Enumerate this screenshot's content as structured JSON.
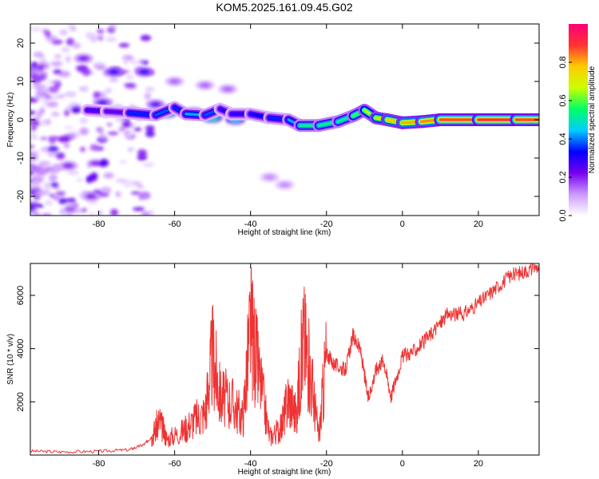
{
  "chart_data": [
    {
      "type": "heatmap",
      "title": "KOM5.2025.161.09.45.G02",
      "xlabel": "Height of straight line (km)",
      "ylabel": "Frequency (Hz)",
      "xlim": [
        -98,
        36
      ],
      "ylim": [
        -25,
        25
      ],
      "x_ticks": [
        -80,
        -60,
        -40,
        -20,
        0,
        20
      ],
      "y_ticks": [
        -20,
        -10,
        0,
        10,
        20
      ],
      "colorbar": {
        "label": "Normalized spectral amplitude",
        "range": [
          0,
          1
        ],
        "ticks": [
          0.0,
          0.2,
          0.4,
          0.6,
          0.8
        ],
        "colors": [
          "#ffffff",
          "#cc99ff",
          "#7700ee",
          "#0000ff",
          "#00ccff",
          "#00ff66",
          "#ccff00",
          "#ffcc00",
          "#ff3333",
          "#ff0077"
        ]
      },
      "ridge": [
        {
          "x": -83,
          "y": 2.5,
          "amp": 0.3
        },
        {
          "x": -78,
          "y": 2.2,
          "amp": 0.25
        },
        {
          "x": -72,
          "y": 1.8,
          "amp": 0.25
        },
        {
          "x": -65,
          "y": 1.2,
          "amp": 0.45
        },
        {
          "x": -60,
          "y": 3.2,
          "amp": 0.3
        },
        {
          "x": -57,
          "y": 1.5,
          "amp": 0.4
        },
        {
          "x": -52,
          "y": 1.2,
          "amp": 0.45
        },
        {
          "x": -48,
          "y": 2.8,
          "amp": 0.3
        },
        {
          "x": -45,
          "y": 1.5,
          "amp": 0.3
        },
        {
          "x": -40,
          "y": 1.5,
          "amp": 0.3
        },
        {
          "x": -35,
          "y": 0.5,
          "amp": 0.35
        },
        {
          "x": -30,
          "y": 0.0,
          "amp": 0.35
        },
        {
          "x": -27,
          "y": -1.5,
          "amp": 0.5
        },
        {
          "x": -22,
          "y": -1.5,
          "amp": 0.55
        },
        {
          "x": -17,
          "y": -0.5,
          "amp": 0.5
        },
        {
          "x": -13,
          "y": 1.0,
          "amp": 0.55
        },
        {
          "x": -10,
          "y": 2.5,
          "amp": 0.6
        },
        {
          "x": -7,
          "y": 0.5,
          "amp": 0.7
        },
        {
          "x": -4,
          "y": 0.0,
          "amp": 0.75
        },
        {
          "x": 0,
          "y": -0.8,
          "amp": 0.8
        },
        {
          "x": 5,
          "y": -0.5,
          "amp": 0.8
        },
        {
          "x": 10,
          "y": 0.0,
          "amp": 0.85
        },
        {
          "x": 20,
          "y": 0.0,
          "amp": 0.9
        },
        {
          "x": 30,
          "y": 0.0,
          "amp": 0.9
        },
        {
          "x": 36,
          "y": 0.0,
          "amp": 0.85
        }
      ],
      "blobs": [
        {
          "x": -76,
          "y": 12.5,
          "amp": 0.3
        },
        {
          "x": -68,
          "y": 12.5,
          "amp": 0.3
        },
        {
          "x": -79,
          "y": 4.5,
          "amp": 0.25
        },
        {
          "x": -65,
          "y": 4.0,
          "amp": 0.25
        },
        {
          "x": -62,
          "y": 1.8,
          "amp": 0.55
        },
        {
          "x": -55,
          "y": 1.8,
          "amp": 0.5
        },
        {
          "x": -50,
          "y": 0.5,
          "amp": 0.5
        },
        {
          "x": -44,
          "y": 0.0,
          "amp": 0.45
        },
        {
          "x": -60,
          "y": 10.0,
          "amp": 0.15
        },
        {
          "x": -52,
          "y": 9.0,
          "amp": 0.15
        },
        {
          "x": -46,
          "y": 8.0,
          "amp": 0.15
        },
        {
          "x": -35,
          "y": -15.0,
          "amp": 0.12
        },
        {
          "x": -31,
          "y": -17.0,
          "amp": 0.12
        },
        {
          "x": -84,
          "y": 16.0,
          "amp": 0.22
        },
        {
          "x": -88,
          "y": -12.0,
          "amp": 0.2
        },
        {
          "x": -82,
          "y": -20.0,
          "amp": 0.2
        }
      ]
    },
    {
      "type": "line",
      "xlabel": "Height of straight line (km)",
      "ylabel": "SNR (10 * v/v)",
      "xlim": [
        -98,
        36
      ],
      "ylim": [
        0,
        7200
      ],
      "x_ticks": [
        -80,
        -60,
        -40,
        -20,
        0,
        20
      ],
      "y_ticks": [
        2000,
        4000,
        6000
      ],
      "color": "#ee3333",
      "points": [
        {
          "x": -98,
          "y": 150
        },
        {
          "x": -90,
          "y": 120
        },
        {
          "x": -80,
          "y": 140
        },
        {
          "x": -72,
          "y": 200
        },
        {
          "x": -68,
          "y": 400
        },
        {
          "x": -66,
          "y": 700
        },
        {
          "x": -64,
          "y": 1300
        },
        {
          "x": -62,
          "y": 600
        },
        {
          "x": -58,
          "y": 900
        },
        {
          "x": -55,
          "y": 1300
        },
        {
          "x": -52,
          "y": 1600
        },
        {
          "x": -50,
          "y": 3800
        },
        {
          "x": -48,
          "y": 2200
        },
        {
          "x": -45,
          "y": 2000
        },
        {
          "x": -42,
          "y": 1400
        },
        {
          "x": -40,
          "y": 4900
        },
        {
          "x": -38,
          "y": 3200
        },
        {
          "x": -35,
          "y": 700
        },
        {
          "x": -32,
          "y": 1000
        },
        {
          "x": -30,
          "y": 2200
        },
        {
          "x": -28,
          "y": 1500
        },
        {
          "x": -26,
          "y": 4500
        },
        {
          "x": -24,
          "y": 2800
        },
        {
          "x": -22,
          "y": 700
        },
        {
          "x": -20,
          "y": 3800
        },
        {
          "x": -18,
          "y": 3400
        },
        {
          "x": -15,
          "y": 3200
        },
        {
          "x": -13,
          "y": 4500
        },
        {
          "x": -11,
          "y": 3900
        },
        {
          "x": -9,
          "y": 2100
        },
        {
          "x": -7,
          "y": 3200
        },
        {
          "x": -5,
          "y": 3600
        },
        {
          "x": -3,
          "y": 2200
        },
        {
          "x": 0,
          "y": 3700
        },
        {
          "x": 3,
          "y": 3900
        },
        {
          "x": 6,
          "y": 4300
        },
        {
          "x": 9,
          "y": 4800
        },
        {
          "x": 12,
          "y": 5300
        },
        {
          "x": 16,
          "y": 5300
        },
        {
          "x": 20,
          "y": 5700
        },
        {
          "x": 24,
          "y": 6200
        },
        {
          "x": 28,
          "y": 6700
        },
        {
          "x": 32,
          "y": 6900
        },
        {
          "x": 36,
          "y": 7100
        }
      ]
    }
  ]
}
